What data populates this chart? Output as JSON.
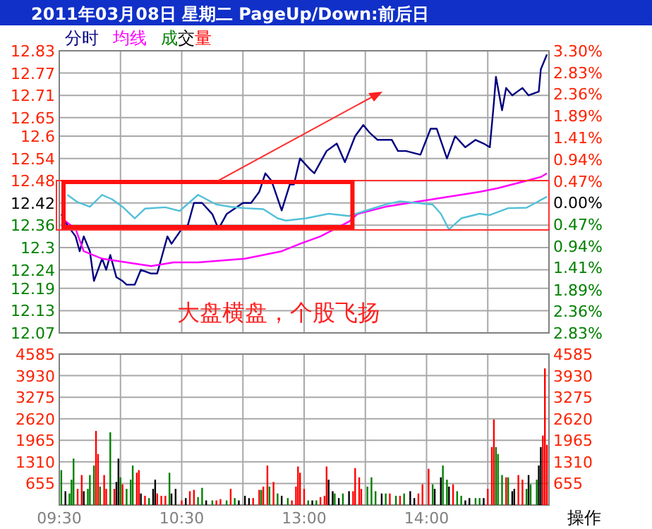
{
  "chart_data": [
    {
      "type": "line",
      "title": "2011年03月08日  星期二  PageUp/Down:前后日",
      "categories": [
        null,
        null,
        null,
        null,
        null,
        null,
        null,
        null,
        null,
        null,
        null,
        null,
        null,
        null,
        null,
        null,
        null,
        null,
        null,
        null,
        null,
        null,
        null,
        null,
        null,
        null,
        null,
        null,
        null,
        null,
        null,
        null,
        null,
        null,
        null,
        null,
        null,
        null,
        null,
        null,
        null,
        null,
        null,
        null,
        null,
        null,
        null,
        null,
        null,
        null,
        null,
        null,
        null,
        null,
        null,
        null,
        null,
        null,
        null,
        null,
        null,
        null,
        null,
        null,
        null,
        null,
        null,
        null,
        null,
        null,
        null,
        null,
        null,
        null,
        null,
        null,
        null,
        null,
        null,
        null,
        null,
        null,
        null,
        null,
        null,
        null,
        null,
        null,
        null,
        null,
        null,
        null,
        null,
        null,
        null,
        null,
        null,
        null,
        null,
        null,
        null,
        null,
        null,
        null,
        null,
        null,
        null,
        null,
        null,
        null,
        null,
        null,
        null,
        null,
        null,
        null,
        null,
        null,
        null,
        null,
        null,
        null,
        null,
        null,
        null,
        null,
        null,
        null,
        null,
        null,
        null,
        null,
        null,
        null,
        null,
        null,
        null,
        null,
        null,
        null,
        null,
        null,
        null,
        null,
        null,
        null,
        null,
        null,
        null,
        null,
        null,
        null,
        null,
        null,
        null,
        null,
        null,
        null,
        null,
        null,
        null,
        null,
        null,
        null,
        null,
        null,
        null,
        null,
        null,
        null,
        null,
        null,
        null,
        null,
        null,
        null,
        null,
        null,
        null,
        null,
        null,
        null,
        null,
        null,
        null,
        null,
        null,
        null,
        null,
        null,
        null,
        null,
        null,
        null,
        null,
        null,
        null,
        null,
        null,
        null,
        null,
        null,
        null,
        null,
        null,
        null,
        null,
        null,
        null,
        null,
        null,
        null,
        null,
        null,
        null,
        null,
        null,
        null,
        null,
        null,
        null,
        null,
        null,
        null,
        null,
        null,
        null,
        null,
        null,
        null,
        null,
        null,
        null,
        null,
        null,
        null,
        null,
        null,
        null,
        null,
        null
      ],
      "tick_labels": "y",
      "ylim": [
        12.07,
        12.83
      ],
      "yticks": [
        12.07,
        12.13,
        12.19,
        12.24,
        12.3,
        12.36,
        12.42,
        12.48,
        12.54,
        12.6,
        12.65,
        12.71,
        12.77,
        12.83
      ],
      "y2lim": [
        -2.83,
        3.3
      ],
      "y2ticks": [
        {
          "value": -2.83,
          "label": "2.83%"
        },
        {
          "value": -2.36,
          "label": "2.36%"
        },
        {
          "value": -1.89,
          "label": "1.89%"
        },
        {
          "value": -1.41,
          "label": "1.41%"
        },
        {
          "value": -0.94,
          "label": "0.94%"
        },
        {
          "value": -0.47,
          "label": "0.47%"
        },
        {
          "value": 0,
          "label": "0.00%"
        },
        {
          "value": 0.47,
          "label": "0.47%"
        },
        {
          "value": 0.94,
          "label": "0.94%"
        },
        {
          "value": 1.41,
          "label": "1.41%"
        },
        {
          "value": 1.89,
          "label": "1.89%"
        },
        {
          "value": 2.36,
          "label": "2.36%"
        },
        {
          "value": 2.83,
          "label": "2.83%"
        },
        {
          "value": 3.3,
          "label": "3.30%"
        }
      ],
      "grid": true,
      "legend": "top left",
      "marker": "none",
      "line_style": "solid",
      "annotations": [
        "大盘横盘，个股飞扬"
      ],
      "series": [
        {
          "name": "分时",
          "color": "#000080",
          "values": [
            null,
            12.39,
            null,
            null,
            12.36,
            null,
            null,
            null,
            12.33,
            null,
            12.29,
            null,
            12.33,
            null,
            null,
            12.29,
            null,
            12.21,
            null,
            null,
            null,
            12.27,
            null,
            12.24,
            null,
            12.28,
            null,
            null,
            12.22,
            null,
            null,
            12.21,
            null,
            12.2,
            null,
            null,
            null,
            12.2,
            null,
            null,
            12.24,
            null,
            null,
            null,
            null,
            12.23,
            null,
            null,
            12.23,
            null,
            null,
            null,
            null,
            12.33,
            null,
            12.31,
            null,
            null,
            null,
            null,
            12.35,
            null,
            null,
            12.36,
            null,
            null,
            12.42,
            null,
            null,
            null,
            12.42,
            null,
            null,
            null,
            null,
            12.39,
            null,
            null,
            12.35,
            null,
            null,
            null,
            12.39,
            null,
            null,
            null,
            null,
            null,
            null,
            null,
            12.42,
            null,
            null,
            null,
            12.42,
            null,
            null,
            null,
            12.45,
            null,
            null,
            12.5,
            null,
            null,
            12.48,
            null,
            null,
            null,
            null,
            12.4,
            null,
            null,
            null,
            12.47,
            null,
            12.47,
            null,
            null,
            12.54,
            null,
            null,
            null,
            null,
            12.51,
            null,
            12.5,
            null,
            null,
            null,
            null,
            null,
            12.56,
            null,
            null,
            null,
            null,
            12.58,
            null,
            null,
            null,
            12.53,
            null,
            null,
            null,
            null,
            12.6,
            null,
            null,
            null,
            12.63,
            null,
            null,
            12.61,
            null,
            null,
            null,
            12.59,
            null,
            null,
            null,
            null,
            null,
            null,
            12.59,
            null,
            null,
            12.56,
            null,
            null,
            null,
            12.56,
            null,
            null,
            null,
            null,
            null,
            null,
            12.55,
            null,
            null,
            null,
            null,
            12.62,
            null,
            null,
            12.62,
            null,
            null,
            null,
            null,
            12.54,
            null,
            null,
            null,
            12.6,
            null,
            null,
            null,
            null,
            12.57,
            null,
            null,
            null,
            null,
            12.59,
            null,
            null,
            null,
            12.58,
            null,
            null,
            12.57,
            null,
            12.69,
            12.76,
            null,
            null,
            12.67,
            null,
            12.73,
            null,
            null,
            12.71,
            null,
            null,
            null,
            null,
            12.73,
            null,
            null,
            12.71,
            null,
            null,
            null,
            null,
            12.72,
            12.78,
            null,
            null,
            12.82,
            null
          ]
        },
        {
          "name": "均线",
          "color": "#ff00ff",
          "values": [
            null,
            12.38,
            null,
            null,
            null,
            null,
            null,
            null,
            12.35,
            null,
            null,
            null,
            12.29,
            null,
            null,
            null,
            null,
            null,
            null,
            null,
            null,
            12.27,
            null,
            null,
            null,
            null,
            null,
            null,
            null,
            null,
            null,
            null,
            null,
            12.26,
            null,
            null,
            null,
            null,
            null,
            null,
            null,
            null,
            null,
            null,
            null,
            12.25,
            null,
            null,
            null,
            null,
            null,
            null,
            null,
            null,
            null,
            null,
            12.26,
            null,
            null,
            null,
            null,
            null,
            null,
            null,
            null,
            null,
            null,
            null,
            12.26,
            null,
            null,
            null,
            null,
            null,
            null,
            null,
            null,
            null,
            null,
            null,
            null,
            null,
            null,
            null,
            null,
            null,
            null,
            null,
            null,
            null,
            null,
            12.27,
            null,
            null,
            null,
            null,
            null,
            null,
            null,
            null,
            12.28,
            null,
            null,
            null,
            null,
            null,
            null,
            null,
            null,
            12.29,
            null,
            null,
            null,
            null,
            null,
            null,
            null,
            null,
            12.31,
            null,
            null,
            null,
            null,
            null,
            null,
            null,
            null,
            null,
            12.33,
            null,
            null,
            null,
            null,
            null,
            null,
            null,
            null,
            null,
            null,
            null,
            null,
            null,
            12.37,
            null,
            null,
            null,
            12.39,
            null,
            null,
            null,
            null,
            null,
            null,
            null,
            null,
            null,
            null,
            null,
            null,
            null,
            12.41,
            null,
            null,
            null,
            null,
            null,
            null,
            null,
            null,
            null,
            null,
            null,
            null,
            null,
            null,
            null,
            null,
            null,
            null,
            null,
            null,
            null,
            null,
            12.43,
            null,
            null,
            null,
            null,
            null,
            null,
            null,
            null,
            null,
            null,
            null,
            null,
            null,
            null,
            null,
            null,
            null,
            null,
            null,
            null,
            null,
            null,
            12.45,
            null,
            null,
            null,
            null,
            null,
            null,
            null,
            null,
            12.46,
            null,
            null,
            null,
            null,
            null,
            null,
            null,
            null,
            null,
            null,
            null,
            null,
            null,
            12.48,
            null,
            null,
            null,
            null,
            null,
            null,
            12.49,
            null,
            null,
            12.5,
            null
          ]
        },
        {
          "color": "#50c0d8",
          "axis": "y2",
          "values": [
            null,
            null,
            null,
            null,
            0.17,
            null,
            null,
            null,
            null,
            0.01,
            null,
            null,
            null,
            null,
            null,
            -0.09,
            null,
            null,
            null,
            null,
            null,
            0.17,
            null,
            null,
            null,
            null,
            0.07,
            null,
            null,
            null,
            null,
            -0.09,
            null,
            null,
            null,
            null,
            null,
            -0.34,
            null,
            null,
            null,
            null,
            -0.13,
            null,
            null,
            null,
            null,
            null,
            null,
            null,
            null,
            null,
            -0.1,
            null,
            null,
            null,
            null,
            null,
            null,
            -0.18,
            null,
            null,
            null,
            null,
            null,
            null,
            null,
            null,
            0.17,
            null,
            null,
            null,
            null,
            null,
            null,
            null,
            null,
            -0.04,
            null,
            null,
            null,
            null,
            null,
            null,
            -0.09,
            null,
            null,
            null,
            null,
            null,
            null,
            -0.12,
            null,
            null,
            null,
            null,
            null,
            null,
            null,
            null,
            -0.14,
            null,
            null,
            null,
            null,
            null,
            null,
            -0.34,
            null,
            null,
            null,
            -0.39,
            null,
            null,
            null,
            null,
            null,
            null,
            null,
            null,
            null,
            -0.34,
            null,
            null,
            null,
            null,
            null,
            null,
            null,
            null,
            null,
            null,
            -0.24,
            null,
            null,
            null,
            null,
            null,
            null,
            null,
            null,
            null,
            -0.29,
            null,
            null,
            null,
            null,
            null,
            null,
            -0.19,
            null,
            null,
            null,
            null,
            null,
            null,
            null,
            null,
            null,
            null,
            -0.04,
            null,
            null,
            null,
            null,
            null,
            null,
            0.03,
            null,
            null,
            null,
            null,
            null,
            null,
            null,
            null,
            null,
            null,
            null,
            null,
            null,
            null,
            null,
            -0.04,
            null,
            null,
            null,
            -0.24,
            null,
            null,
            null,
            -0.58,
            null,
            null,
            null,
            null,
            null,
            -0.34,
            null,
            null,
            null,
            null,
            null,
            null,
            null,
            null,
            -0.24,
            null,
            null,
            null,
            null,
            -0.27,
            null,
            null,
            null,
            null,
            null,
            null,
            null,
            null,
            -0.12,
            null,
            null,
            null,
            null,
            null,
            null,
            null,
            null,
            -0.11,
            null,
            null,
            null,
            null,
            0.01,
            null,
            null,
            null,
            null,
            0.13,
            null
          ]
        }
      ]
    },
    {
      "type": "bar",
      "categories": [
        "09:30",
        null,
        null,
        null,
        null,
        null,
        null,
        null,
        null,
        null,
        null,
        null,
        null,
        null,
        null,
        null,
        null,
        null,
        null,
        null,
        null,
        null,
        null,
        null,
        null,
        null,
        null,
        null,
        null,
        null,
        null,
        null,
        null,
        null,
        null,
        null,
        null,
        null,
        null,
        null,
        null,
        null,
        null,
        null,
        null,
        null,
        null,
        null,
        null,
        null,
        null,
        null,
        null,
        null,
        null,
        null,
        null,
        null,
        null,
        null,
        "10:30",
        null,
        null,
        null,
        null,
        null,
        null,
        null,
        null,
        null,
        null,
        null,
        null,
        null,
        null,
        null,
        null,
        null,
        null,
        null,
        null,
        null,
        null,
        null,
        null,
        null,
        null,
        null,
        null,
        null,
        null,
        null,
        null,
        null,
        null,
        null,
        null,
        null,
        null,
        null,
        null,
        null,
        null,
        null,
        null,
        null,
        null,
        null,
        null,
        null,
        null,
        null,
        null,
        null,
        null,
        null,
        null,
        null,
        null,
        null,
        "13:00",
        null,
        null,
        null,
        null,
        null,
        null,
        null,
        null,
        null,
        null,
        null,
        null,
        null,
        null,
        null,
        null,
        null,
        null,
        null,
        null,
        null,
        null,
        null,
        null,
        null,
        null,
        null,
        null,
        null,
        null,
        null,
        null,
        null,
        null,
        null,
        null,
        null,
        null,
        null,
        null,
        null,
        null,
        null,
        null,
        null,
        null,
        null,
        null,
        null,
        null,
        null,
        null,
        null,
        null,
        null,
        null,
        null,
        null,
        null,
        "14:00",
        null,
        null,
        null,
        null,
        null,
        null,
        null,
        null,
        null,
        null,
        null,
        null,
        null,
        null,
        null,
        null,
        null,
        null,
        null,
        null,
        null,
        null,
        null,
        null,
        null,
        null,
        null,
        null,
        null,
        null,
        null,
        null,
        null,
        null,
        null,
        null,
        null,
        null,
        null,
        null,
        null,
        null,
        null,
        null,
        null,
        null,
        null,
        null,
        null,
        null,
        null,
        null,
        null,
        null,
        null,
        null,
        null,
        null,
        null,
        null
      ],
      "ylim": [
        0,
        4585
      ],
      "yticks": [
        655,
        1310,
        1965,
        2620,
        3275,
        3930,
        4585
      ],
      "y2lim": [
        0,
        4585
      ],
      "y2ticks": [
        655,
        1310,
        1965,
        2620,
        3275,
        3930,
        4585
      ],
      "grid": true,
      "legend": "top left",
      "annotations": [
        "操作"
      ],
      "series": [
        {
          "name": "成交量",
          "values": [
            null,
            1060,
            null,
            420,
            null,
            350,
            770,
            1410,
            null,
            490,
            null,
            910,
            420,
            null,
            490,
            910,
            null,
            1200,
            2250,
            1550,
            560,
            null,
            910,
            490,
            null,
            2210,
            null,
            490,
            700,
            1410,
            840,
            630,
            null,
            490,
            null,
            770,
            1200,
            null,
            980,
            1060,
            350,
            null,
            280,
            null,
            210,
            null,
            490,
            770,
            350,
            null,
            280,
            null,
            280,
            null,
            980,
            350,
            null,
            490,
            null,
            null,
            140,
            null,
            210,
            null,
            420,
            null,
            460,
            null,
            240,
            null,
            520,
            null,
            140,
            null,
            null,
            140,
            null,
            140,
            null,
            180,
            null,
            null,
            140,
            null,
            490,
            null,
            210,
            null,
            140,
            null,
            null,
            280,
            null,
            210,
            null,
            210,
            null,
            null,
            460,
            460,
            560,
            null,
            1200,
            560,
            null,
            700,
            null,
            350,
            null,
            280,
            null,
            null,
            210,
            null,
            140,
            null,
            560,
            1170,
            980,
            null,
            490,
            null,
            140,
            null,
            140,
            null,
            140,
            null,
            240,
            null,
            280,
            1170,
            770,
            null,
            420,
            350,
            null,
            210,
            null,
            350,
            null,
            null,
            420,
            null,
            420,
            1120,
            null,
            840,
            490,
            null,
            null,
            560,
            null,
            840,
            null,
            420,
            null,
            null,
            350,
            null,
            350,
            null,
            350,
            null,
            null,
            280,
            null,
            280,
            null,
            350,
            null,
            null,
            420,
            null,
            210,
            null,
            350,
            null,
            630,
            null,
            null,
            1100,
            null,
            630,
            490,
            null,
            null,
            840,
            1200,
            null,
            770,
            560,
            null,
            630,
            null,
            420,
            null,
            280,
            null,
            140,
            null,
            210,
            null,
            null,
            210,
            null,
            210,
            null,
            210,
            null,
            490,
            null,
            1760,
            2600,
            1760,
            1550,
            null,
            910,
            null,
            840,
            840,
            null,
            420,
            490,
            null,
            910,
            null,
            770,
            null,
            490,
            910,
            630,
            null,
            null,
            770,
            1200,
            1760,
            2110,
            4150,
            1830,
            null
          ],
          "colors": [
            null,
            "#008000",
            null,
            "#000000",
            null,
            "#008000",
            "#008000",
            "#008000",
            null,
            "#ff0000",
            null,
            "#ff0000",
            "#000000",
            null,
            "#008000",
            "#008000",
            null,
            "#008000",
            "#ff0000",
            "#ff0000",
            "#008000",
            null,
            "#ff0000",
            "#ff0000",
            null,
            "#008000",
            null,
            "#ff0000",
            "#000000",
            "#000000",
            "#008000",
            "#ff0000",
            null,
            "#008000",
            null,
            "#008000",
            "#008000",
            null,
            "#ff0000",
            "#ff0000",
            "#000000",
            null,
            "#ff0000",
            null,
            "#008000",
            null,
            "#000000",
            "#000000",
            "#ff0000",
            null,
            "#ff0000",
            null,
            "#ff0000",
            null,
            "#008000",
            "#000000",
            null,
            "#000000",
            null,
            null,
            "#ff0000",
            null,
            "#000000",
            null,
            "#ff0000",
            null,
            "#ff0000",
            null,
            "#008000",
            null,
            "#008000",
            null,
            "#000000",
            null,
            null,
            "#008000",
            null,
            "#ff0000",
            null,
            "#ff0000",
            null,
            null,
            "#008000",
            null,
            "#ff0000",
            null,
            "#008000",
            null,
            "#000000",
            null,
            null,
            "#000000",
            null,
            "#000000",
            null,
            "#ff0000",
            null,
            null,
            "#ff0000",
            "#008000",
            "#ff0000",
            null,
            "#ff0000",
            "#008000",
            null,
            "#ff0000",
            null,
            "#008000",
            null,
            "#000000",
            null,
            null,
            "#008000",
            null,
            "#ff0000",
            null,
            "#ff0000",
            "#ff0000",
            "#ff0000",
            null,
            "#ff0000",
            null,
            "#008000",
            null,
            "#000000",
            null,
            "#008000",
            null,
            "#ff0000",
            null,
            "#ff0000",
            "#ff0000",
            "#000000",
            null,
            "#000000",
            "#008000",
            null,
            "#000000",
            null,
            "#008000",
            null,
            null,
            "#000000",
            null,
            "#ff0000",
            "#ff0000",
            null,
            "#ff0000",
            "#ff0000",
            null,
            null,
            "#008000",
            null,
            "#008000",
            null,
            "#008000",
            null,
            null,
            "#000000",
            null,
            "#008000",
            null,
            "#ff0000",
            null,
            null,
            "#008000",
            null,
            "#ff0000",
            null,
            "#008000",
            null,
            null,
            "#000000",
            null,
            "#000000",
            null,
            "#ff0000",
            null,
            "#ff0000",
            null,
            null,
            "#ff0000",
            null,
            "#008000",
            "#000000",
            null,
            null,
            "#000000",
            "#008000",
            null,
            "#008000",
            "#000000",
            null,
            "#ff0000",
            null,
            "#008000",
            null,
            "#008000",
            null,
            "#000000",
            null,
            "#000000",
            null,
            null,
            "#008000",
            null,
            "#008000",
            null,
            "#000000",
            null,
            "#ff0000",
            null,
            "#ff0000",
            "#ff0000",
            "#008000",
            "#008000",
            null,
            "#008000",
            null,
            "#ff0000",
            "#008000",
            null,
            "#000000",
            "#000000",
            null,
            "#ff0000",
            null,
            "#ff0000",
            null,
            "#008000",
            "#000000",
            "#008000",
            null,
            null,
            "#008000",
            "#000000",
            "#000000",
            "#ff0000",
            "#ff0000",
            "#ff0000",
            null
          ]
        }
      ]
    }
  ]
}
